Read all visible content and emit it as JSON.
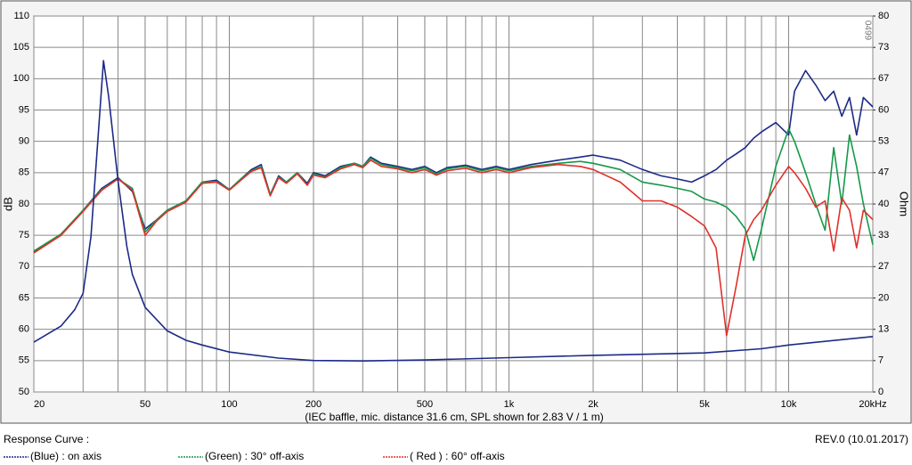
{
  "chart_data": {
    "type": "line",
    "x_label": "(IEC baffle, mic. distance 31.6 cm, SPL shown for 2.83 V / 1 m)",
    "y_label": "dB",
    "y2_label": "Ohm",
    "code": "0499",
    "legend_title": "Response Curve :",
    "revision": "REV.0 (10.01.2017)",
    "xscale": "log",
    "grid": true,
    "xlim": [
      20,
      20000
    ],
    "xticks": [
      20,
      50,
      100,
      200,
      500,
      {
        "value": 1000,
        "label": "1k"
      },
      {
        "value": 2000,
        "label": "2k"
      },
      {
        "value": 5000,
        "label": "5k"
      },
      {
        "value": 10000,
        "label": "10k"
      },
      {
        "value": 20000,
        "label": "20kHz"
      }
    ],
    "ylim": [
      50,
      110
    ],
    "yticks": [
      50,
      55,
      60,
      65,
      70,
      75,
      80,
      85,
      90,
      95,
      100,
      105,
      110
    ],
    "y2lim": [
      0,
      80
    ],
    "y2ticks": [
      0,
      {
        "value": 6.67,
        "label": "7"
      },
      {
        "value": 13.33,
        "label": "13"
      },
      20,
      {
        "value": 26.67,
        "label": "27"
      },
      {
        "value": 33.33,
        "label": "33"
      },
      40,
      {
        "value": 46.67,
        "label": "47"
      },
      {
        "value": 53.33,
        "label": "53"
      },
      60,
      {
        "value": 66.67,
        "label": "67"
      },
      {
        "value": 73.33,
        "label": "73"
      },
      80
    ],
    "x": [
      20,
      25,
      30,
      35,
      40,
      45,
      50,
      55,
      60,
      70,
      80,
      90,
      100,
      110,
      120,
      130,
      140,
      150,
      160,
      175,
      190,
      200,
      220,
      250,
      280,
      300,
      320,
      350,
      400,
      450,
      500,
      550,
      600,
      700,
      800,
      900,
      1000,
      1200,
      1500,
      1800,
      2000,
      2500,
      3000,
      3500,
      4000,
      4500,
      5000,
      5500,
      6000,
      6500,
      7000,
      7500,
      8000,
      9000,
      10000,
      10500,
      11500,
      12500,
      13500,
      14500,
      15500,
      16500,
      17500,
      18500,
      20000
    ],
    "series": [
      {
        "name": "(Blue)  : on axis",
        "color": "#1c2a87",
        "values": [
          72.3,
          75,
          79,
          82.5,
          84.2,
          82,
          76,
          77.5,
          79,
          80.5,
          83.5,
          83.8,
          82.3,
          84,
          85.5,
          86.3,
          81.5,
          84.5,
          83.5,
          85,
          83.3,
          85,
          84.5,
          86,
          86.5,
          86,
          87.5,
          86.5,
          86,
          85.5,
          86,
          85,
          85.8,
          86.2,
          85.5,
          86,
          85.5,
          86.3,
          87,
          87.5,
          87.8,
          87,
          85.5,
          84.5,
          84,
          83.5,
          84.5,
          85.5,
          87,
          88,
          89,
          90.5,
          91.5,
          93,
          91,
          98,
          101.3,
          99,
          96.5,
          98,
          94,
          97,
          91,
          97,
          95.5
        ]
      },
      {
        "name": "(Green) : 30° off-axis",
        "color": "#16994a",
        "values": [
          72.5,
          75.2,
          79,
          82.3,
          84,
          82.5,
          75.5,
          77.5,
          79,
          80.5,
          83.5,
          83.6,
          82.3,
          84,
          85.3,
          86,
          81.5,
          84.3,
          83.5,
          85,
          83,
          84.8,
          84.3,
          85.8,
          86.5,
          86,
          87.3,
          86.3,
          85.8,
          85.3,
          85.8,
          84.8,
          85.6,
          86,
          85.3,
          85.8,
          85.3,
          86,
          86.5,
          86.8,
          86.5,
          85.5,
          83.5,
          83,
          82.5,
          82,
          80.8,
          80.3,
          79.5,
          78,
          76,
          71,
          76,
          86,
          92,
          90,
          85,
          80,
          75.8,
          89,
          80,
          91,
          86,
          80,
          73.5
        ]
      },
      {
        "name": "( Red ) : 60° off-axis",
        "color": "#e0302a",
        "values": [
          72.2,
          75,
          78.8,
          82.2,
          84,
          82.2,
          75,
          77.3,
          78.8,
          80.3,
          83.3,
          83.5,
          82.2,
          83.8,
          85.2,
          85.8,
          81.3,
          84.2,
          83.3,
          84.8,
          83,
          84.6,
          84.2,
          85.6,
          86.3,
          85.8,
          87,
          86,
          85.6,
          85,
          85.5,
          84.6,
          85.3,
          85.7,
          85,
          85.5,
          85,
          85.8,
          86.3,
          86,
          85.5,
          83.5,
          80.5,
          80.5,
          79.5,
          78,
          76.5,
          73,
          59,
          67,
          75,
          77.5,
          79,
          83,
          86,
          85,
          82.5,
          79.5,
          80.5,
          72.5,
          81,
          79,
          73,
          79,
          77.5
        ]
      },
      {
        "color": "#1c2a87",
        "axis": "y2",
        "x": [
          20,
          25,
          28,
          30,
          32,
          34,
          35.5,
          37,
          40,
          43,
          45,
          50,
          60,
          70,
          80,
          100,
          150,
          200,
          300,
          500,
          1000,
          2000,
          5000,
          8000,
          10000,
          20000
        ],
        "values": [
          10.6,
          14,
          17.5,
          21,
          33,
          55,
          70.5,
          63,
          45,
          31,
          25,
          18,
          13,
          11,
          10,
          8.5,
          7.2,
          6.7,
          6.6,
          6.8,
          7.3,
          7.8,
          8.3,
          9.2,
          10,
          11.8
        ]
      }
    ]
  }
}
